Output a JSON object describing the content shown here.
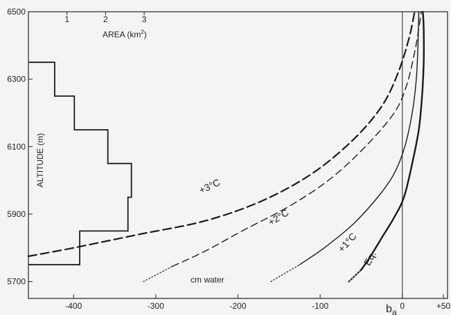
{
  "chart_data": {
    "type": "line",
    "xlabel": "b_a",
    "xunit_label": "cm water",
    "ylabel": "ALTITUDE (m)",
    "xlim": [
      -455,
      55
    ],
    "ylim": [
      5650,
      6500
    ],
    "x_ticks": [
      -400,
      -300,
      -200,
      -100,
      0,
      50
    ],
    "x_tick_labels": [
      "-400",
      "-300",
      "-200",
      "-100",
      "0",
      "+50"
    ],
    "y_ticks": [
      5700,
      5900,
      6100,
      6300,
      6500
    ],
    "y_tick_labels": [
      "5700",
      "5900",
      "6100",
      "6300",
      "6500"
    ],
    "ba": {
      "prefix": "b",
      "subscript": "a"
    },
    "area_axis": {
      "label_prefix": "AREA (km",
      "label_sup": "2",
      "label_suffix": ")",
      "ticks": [
        1,
        2,
        3
      ],
      "tick_labels": [
        "1",
        "2",
        "3"
      ],
      "zero_at_x": -455,
      "km2_per_x": 0.0213
    },
    "hypsometry": [
      {
        "alt_low": 5750,
        "alt_high": 5850,
        "area_km2": 1.33
      },
      {
        "alt_low": 5850,
        "alt_high": 5950,
        "area_km2": 2.58
      },
      {
        "alt_low": 5950,
        "alt_high": 6050,
        "area_km2": 2.67
      },
      {
        "alt_low": 6050,
        "alt_high": 6150,
        "area_km2": 2.06
      },
      {
        "alt_low": 6150,
        "alt_high": 6250,
        "area_km2": 1.19
      },
      {
        "alt_low": 6250,
        "alt_high": 6350,
        "area_km2": 0.68
      }
    ],
    "series": [
      {
        "name": "Eq.",
        "points": [
          [
            -65,
            5700
          ],
          [
            -50,
            5735
          ],
          [
            -40,
            5770
          ],
          [
            -25,
            5830
          ],
          [
            -10,
            5890
          ],
          [
            2,
            5950
          ],
          [
            12,
            6050
          ],
          [
            20,
            6150
          ],
          [
            24,
            6250
          ],
          [
            26,
            6350
          ],
          [
            26,
            6450
          ],
          [
            25,
            6500
          ]
        ],
        "style": "solid-thick",
        "dotted_until_y": 5735
      },
      {
        "name": "+1°C",
        "points": [
          [
            -160,
            5700
          ],
          [
            -125,
            5750
          ],
          [
            -95,
            5800
          ],
          [
            -60,
            5870
          ],
          [
            -30,
            5950
          ],
          [
            -10,
            6020
          ],
          [
            3,
            6100
          ],
          [
            12,
            6200
          ],
          [
            17,
            6300
          ],
          [
            19,
            6400
          ],
          [
            20,
            6500
          ]
        ],
        "style": "solid",
        "dotted_until_y": 5750
      },
      {
        "name": "+2°C",
        "points": [
          [
            -315,
            5700
          ],
          [
            -280,
            5745
          ],
          [
            -240,
            5790
          ],
          [
            -195,
            5850
          ],
          [
            -140,
            5920
          ],
          [
            -90,
            6000
          ],
          [
            -45,
            6100
          ],
          [
            -10,
            6200
          ],
          [
            5,
            6280
          ],
          [
            15,
            6380
          ],
          [
            20,
            6450
          ],
          [
            23,
            6500
          ]
        ],
        "style": "dashed",
        "dotted_until_y": 5745
      },
      {
        "name": "+3°C",
        "points": [
          [
            -455,
            5775
          ],
          [
            -400,
            5800
          ],
          [
            -320,
            5840
          ],
          [
            -240,
            5880
          ],
          [
            -170,
            5940
          ],
          [
            -110,
            6020
          ],
          [
            -60,
            6120
          ],
          [
            -25,
            6220
          ],
          [
            -5,
            6320
          ],
          [
            8,
            6420
          ],
          [
            15,
            6500
          ]
        ],
        "style": "dashed-long"
      }
    ],
    "annotations": [
      {
        "text": "+3°C",
        "x": -245,
        "y": 5960,
        "rotate": -25
      },
      {
        "text": "+2°C",
        "x": -160,
        "y": 5865,
        "rotate": -32
      },
      {
        "text": "+1°C",
        "x": -73,
        "y": 5785,
        "rotate": -48
      },
      {
        "text": "Eq.",
        "x": -40,
        "y": 5745,
        "rotate": -62
      }
    ],
    "vertical_reference_x": 0,
    "grid": false,
    "legend": "none"
  }
}
